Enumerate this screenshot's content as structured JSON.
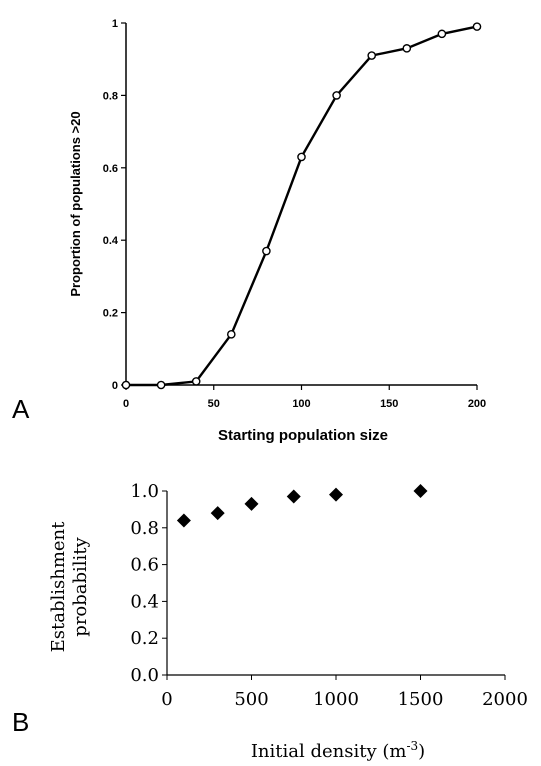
{
  "chart_data": [
    {
      "panel_label": "A",
      "type": "line",
      "title": "",
      "xlabel": "Starting population size",
      "ylabel": "Proportion of populations >20",
      "xlim": [
        0,
        200
      ],
      "ylim": [
        0,
        1
      ],
      "x_ticks": [
        0,
        50,
        100,
        150,
        200
      ],
      "y_ticks": [
        0,
        0.2,
        0.4,
        0.6,
        0.8,
        1
      ],
      "x_tick_labels": [
        "0",
        "50",
        "100",
        "150",
        "200"
      ],
      "y_tick_labels": [
        "0",
        "0.2",
        "0.4",
        "0.6",
        "0.8",
        "1"
      ],
      "grid": false,
      "series": [
        {
          "x": [
            0,
            20,
            40,
            60,
            80,
            100,
            120,
            140,
            160,
            180,
            200
          ],
          "y": [
            0,
            0,
            0.01,
            0.14,
            0.37,
            0.63,
            0.8,
            0.91,
            0.93,
            0.97,
            0.99
          ]
        }
      ]
    },
    {
      "panel_label": "B",
      "type": "scatter",
      "title": "",
      "xlabel": "Initial density (m",
      "xlabel_sup": "-3",
      "xlabel_end": ")",
      "ylabel_line1": "Establishment",
      "ylabel_line2": "probability",
      "xlim": [
        0,
        2000
      ],
      "ylim": [
        0,
        1
      ],
      "x_ticks": [
        0,
        500,
        1000,
        1500,
        2000
      ],
      "y_ticks": [
        0,
        0.2,
        0.4,
        0.6,
        0.8,
        1
      ],
      "x_tick_labels": [
        "0",
        "500",
        "1000",
        "1500",
        "2000"
      ],
      "y_tick_labels": [
        "0.0",
        "0.2",
        "0.4",
        "0.6",
        "0.8",
        "1.0"
      ],
      "grid": false,
      "series": [
        {
          "x": [
            100,
            300,
            500,
            750,
            1000,
            1500
          ],
          "y": [
            0.84,
            0.88,
            0.93,
            0.97,
            0.98,
            1.0
          ]
        }
      ]
    }
  ]
}
